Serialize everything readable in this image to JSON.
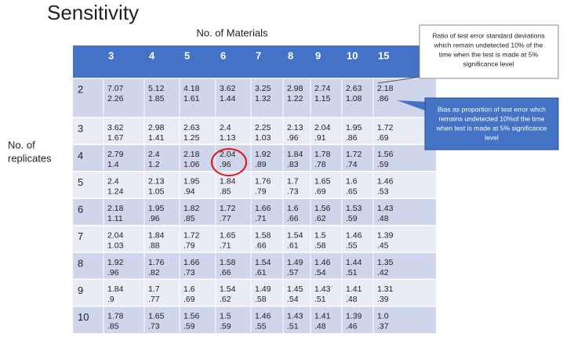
{
  "title": "Sensitivity",
  "column_axis_label": "No. of Materials",
  "row_axis_label": [
    "No. of",
    "replicates"
  ],
  "table": {
    "columns": [
      "3",
      "4",
      "5",
      "6",
      "7",
      "8",
      "9",
      "10",
      "15"
    ],
    "rows": [
      {
        "label": "2",
        "cells": [
          [
            "7.07",
            "2.26"
          ],
          [
            "5.12",
            "1.85"
          ],
          [
            "4.18",
            "1.61"
          ],
          [
            "3.62",
            "1.44"
          ],
          [
            "3.25",
            "1.32"
          ],
          [
            "2.98",
            "1.22"
          ],
          [
            "2.74",
            "1.15"
          ],
          [
            "2.63",
            "1.08"
          ],
          [
            "2.18",
            ".86"
          ]
        ]
      },
      {
        "label": "3",
        "cells": [
          [
            "3.62",
            "1.67"
          ],
          [
            "2.98",
            "1.41"
          ],
          [
            "2.63",
            "1.25"
          ],
          [
            "2.4",
            "1.13"
          ],
          [
            "2.25",
            "1.03"
          ],
          [
            "2.13",
            ".96"
          ],
          [
            "2.04",
            ".91"
          ],
          [
            "1.95",
            ".86"
          ],
          [
            "1.72",
            ".69"
          ]
        ]
      },
      {
        "label": "4",
        "cells": [
          [
            "2.79",
            "1.4"
          ],
          [
            "2.4",
            "1.2"
          ],
          [
            "2.18",
            "1.06"
          ],
          [
            "2.04",
            ".96"
          ],
          [
            "1.92",
            ".89"
          ],
          [
            "1.84",
            ".83"
          ],
          [
            "1.78",
            ".78"
          ],
          [
            "1.72",
            ".74"
          ],
          [
            "1.56",
            ".59"
          ]
        ]
      },
      {
        "label": "5",
        "cells": [
          [
            "2.4",
            "1.24"
          ],
          [
            "2.13",
            "1.05"
          ],
          [
            "1.95",
            ".94"
          ],
          [
            "1.84",
            ".85"
          ],
          [
            "1.76",
            ".79"
          ],
          [
            "1.7",
            ".73"
          ],
          [
            "1.65",
            ".69"
          ],
          [
            "1.6",
            ".65"
          ],
          [
            "1.46",
            ".53"
          ]
        ]
      },
      {
        "label": "6",
        "cells": [
          [
            "2.18",
            "1.11"
          ],
          [
            "1.95",
            ".96"
          ],
          [
            "1.82",
            ".85"
          ],
          [
            "1.72",
            ".77"
          ],
          [
            "1.66",
            ".71"
          ],
          [
            "1.6",
            ".66"
          ],
          [
            "1.56",
            ".62"
          ],
          [
            "1.53",
            ".59"
          ],
          [
            "1.43",
            ".48"
          ]
        ]
      },
      {
        "label": "7",
        "cells": [
          [
            "2.04",
            "1.03"
          ],
          [
            "1.84",
            ".88"
          ],
          [
            "1.72",
            ".79"
          ],
          [
            "1.65",
            ".71"
          ],
          [
            "1.58",
            ".66"
          ],
          [
            "1.54",
            ".61"
          ],
          [
            "1.5",
            ".58"
          ],
          [
            "1.46",
            ".55"
          ],
          [
            "1.39",
            ".45"
          ]
        ]
      },
      {
        "label": "8",
        "cells": [
          [
            "1.92",
            ".96"
          ],
          [
            "1.76",
            ".82"
          ],
          [
            "1.66",
            ".73"
          ],
          [
            "1.58",
            ".66"
          ],
          [
            "1.54",
            ".61"
          ],
          [
            "1.49",
            ".57"
          ],
          [
            "1.46",
            ".54"
          ],
          [
            "1.44",
            ".51"
          ],
          [
            "1.35",
            ".42"
          ]
        ]
      },
      {
        "label": "9",
        "cells": [
          [
            "1.84",
            ".9"
          ],
          [
            "1.7",
            ".77"
          ],
          [
            "1.6",
            ".69"
          ],
          [
            "1.54",
            ".62"
          ],
          [
            "1.49",
            ".58"
          ],
          [
            "1.45",
            ".54"
          ],
          [
            "1.43",
            ".51"
          ],
          [
            "1.41",
            ".48"
          ],
          [
            "1.31",
            ".39"
          ]
        ]
      },
      {
        "label": "10",
        "cells": [
          [
            "1.78",
            ".85"
          ],
          [
            "1.65",
            ".73"
          ],
          [
            "1.56",
            ".59"
          ],
          [
            "1.5",
            ".59"
          ],
          [
            "1.46",
            ".55"
          ],
          [
            "1.43",
            ".51"
          ],
          [
            "1.41",
            ".48"
          ],
          [
            "1.39",
            ".46"
          ],
          [
            "1.0",
            ".37"
          ]
        ]
      }
    ]
  },
  "callouts": [
    {
      "lines": [
        "Ratio of test error standard deviations",
        "which remain undetected 10% of the",
        "time when the test is made at 5%",
        "significance level"
      ]
    },
    {
      "lines": [
        "Bias as proportion of test error whch",
        "remains undetected 10%of the time",
        "when test is made at 5% significance",
        "level"
      ]
    }
  ]
}
